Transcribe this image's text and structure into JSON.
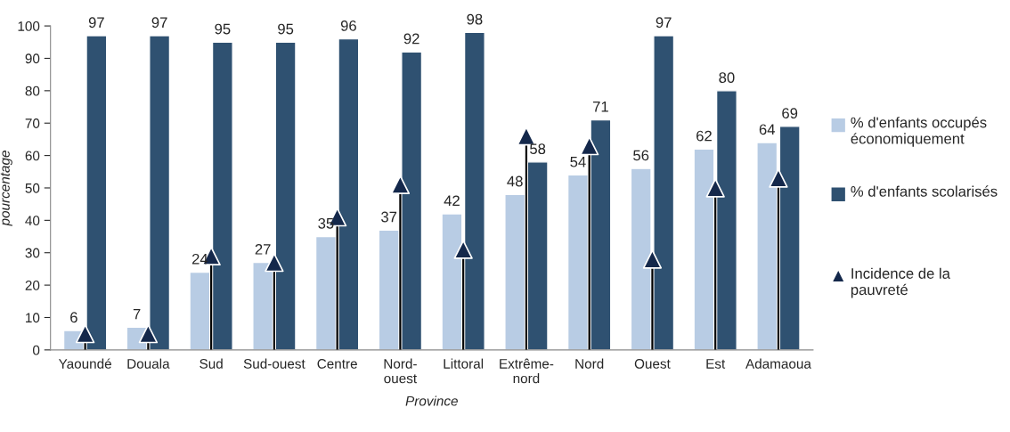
{
  "chart_data": {
    "type": "bar",
    "xlabel": "Province",
    "ylabel": "pourcentage",
    "categories": [
      "Yaoundé",
      "Douala",
      "Sud",
      "Sud-ouest",
      "Centre",
      "Nord-\nouest",
      "Littoral",
      "Extrême-\nnord",
      "Nord",
      "Ouest",
      "Est",
      "Adamaoua"
    ],
    "series": [
      {
        "name": "% d'enfants occupés économiquement",
        "color": "#b8cce4",
        "values": [
          6,
          7,
          24,
          27,
          35,
          37,
          42,
          48,
          54,
          56,
          62,
          64
        ],
        "value_labels": [
          "6",
          "7",
          "24",
          "27",
          "35",
          "37",
          "42",
          "48",
          "54",
          "56",
          "62",
          "64"
        ]
      },
      {
        "name": "% d'enfants scolarisés",
        "color": "#2f5171",
        "values": [
          97,
          97,
          95,
          95,
          96,
          92,
          98,
          58,
          71,
          97,
          80,
          69
        ],
        "value_labels": [
          "97",
          "97",
          "95",
          "95",
          "96",
          "92",
          "98",
          "58",
          "71",
          "97",
          "80",
          "69"
        ]
      },
      {
        "name": "Incidence de la pauvreté",
        "type": "lollipop",
        "color": "#14284b",
        "marker": "triangle",
        "values": [
          5,
          5,
          29,
          27,
          41,
          51,
          31,
          66,
          63,
          28,
          50,
          53
        ]
      }
    ],
    "ylim": [
      0,
      100
    ],
    "yticks": [
      0,
      10,
      20,
      30,
      40,
      50,
      60,
      70,
      80,
      90,
      100
    ],
    "grid": false,
    "legend": "right"
  }
}
